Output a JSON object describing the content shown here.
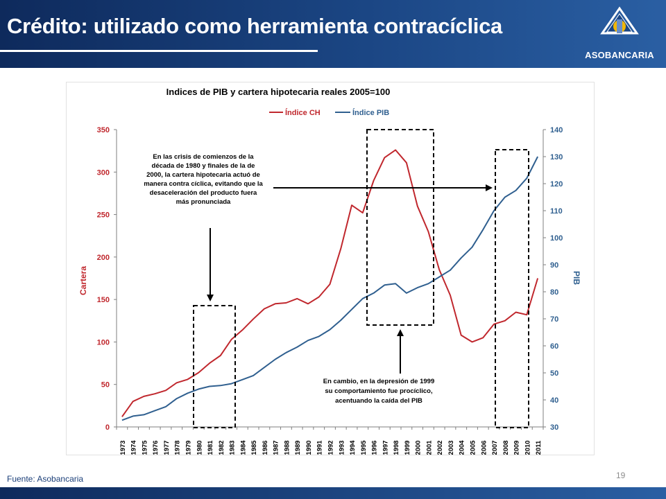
{
  "slide": {
    "title": "Crédito: utilizado como herramienta contracíclica",
    "logo_text": "ASOBANCARIA",
    "source": "Fuente: Asobancaria",
    "page_number": "19"
  },
  "annotations": {
    "left_box_text": [
      "En las crisis de comienzos de la",
      "década de 1980 y finales de la de",
      "2000, la cartera hipotecaria actuó de",
      "manera contra cíclica, evitando que la",
      "desaceleración del producto fuera",
      "más pronunciada"
    ],
    "bottom_text": [
      "En cambio, en la depresión de 1999",
      "su comportamiento fue procíclico,",
      "acentuando la caída del PIB"
    ]
  },
  "colors": {
    "header_dark": "#0e2a5c",
    "series_ch": "#c0272d",
    "series_pib": "#2f5f8f"
  },
  "chart_data": {
    "type": "line",
    "title": "Indices de PIB y cartera hipotecaria reales  2005=100",
    "x": [
      "1973",
      "1974",
      "1975",
      "1976",
      "1977",
      "1978",
      "1979",
      "1980",
      "1981",
      "1982",
      "1983",
      "1984",
      "1985",
      "1986",
      "1987",
      "1988",
      "1989",
      "1990",
      "1991",
      "1992",
      "1993",
      "1994",
      "1995",
      "1996",
      "1997",
      "1998",
      "1999",
      "2000",
      "2001",
      "2002",
      "2003",
      "2004",
      "2005",
      "2006",
      "2007",
      "2008",
      "2009",
      "2010",
      "2011"
    ],
    "series": [
      {
        "name": "Índice CH",
        "axis": "left",
        "color": "#c0272d",
        "values": [
          12,
          30,
          36,
          39,
          43,
          52,
          56,
          64,
          75,
          84,
          103,
          114,
          127,
          139,
          145,
          146,
          151,
          145,
          153,
          168,
          210,
          261,
          252,
          290,
          317,
          326,
          311,
          260,
          230,
          185,
          155,
          108,
          100,
          105,
          121,
          125,
          135,
          132,
          175
        ]
      },
      {
        "name": "Índice PIB",
        "axis": "right",
        "color": "#2f5f8f",
        "values": [
          32.5,
          34,
          34.5,
          36,
          37.5,
          40.5,
          42.5,
          44,
          45,
          45.3,
          46,
          47.5,
          49,
          52,
          55,
          57.5,
          59.5,
          62,
          63.5,
          66,
          69.5,
          73.5,
          77.5,
          79.5,
          82.5,
          83,
          79.5,
          81.5,
          83,
          85.5,
          88,
          92.5,
          96.5,
          103,
          110,
          115,
          117.5,
          122,
          130
        ]
      }
    ],
    "y_left": {
      "label": "Cartera",
      "range": [
        0,
        350
      ],
      "ticks": [
        0,
        50,
        100,
        150,
        200,
        250,
        300,
        350
      ]
    },
    "y_right": {
      "label": "PIB",
      "range": [
        30,
        140
      ],
      "ticks": [
        30,
        40,
        50,
        60,
        70,
        80,
        90,
        100,
        110,
        120,
        130,
        140
      ]
    },
    "legend": "top"
  }
}
